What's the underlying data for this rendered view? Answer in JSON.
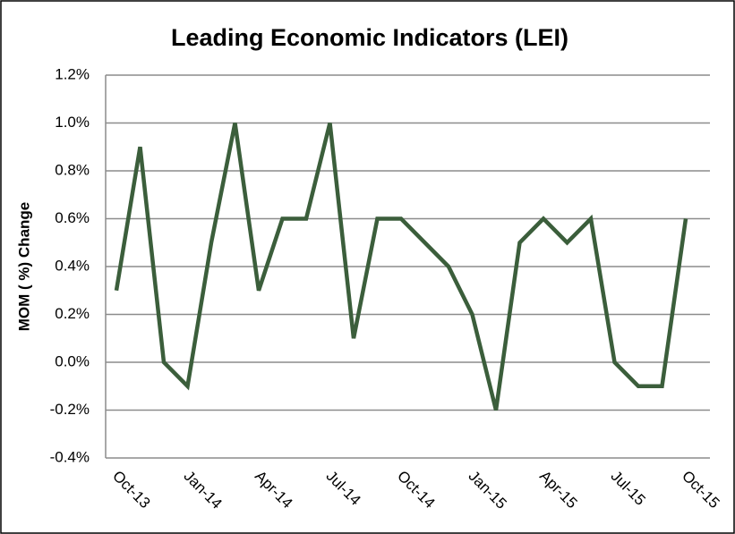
{
  "chart_data": {
    "type": "line",
    "title": "Leading Economic Indicators (LEI)",
    "y_label": "MOM ( %) Change",
    "categories": [
      "Oct-13",
      null,
      null,
      "Jan-14",
      null,
      null,
      "Apr-14",
      null,
      null,
      "Jul-14",
      null,
      null,
      "Oct-14",
      null,
      null,
      "Jan-15",
      null,
      null,
      "Apr-15",
      null,
      null,
      "Jul-15",
      null,
      null,
      "Oct-15"
    ],
    "series": [
      {
        "name": "LEI",
        "color": "#3b5e3b",
        "values": [
          0.3,
          0.9,
          0.0,
          -0.1,
          0.5,
          1.0,
          0.3,
          0.6,
          0.6,
          1.0,
          0.1,
          0.6,
          0.6,
          0.5,
          0.4,
          0.2,
          -0.2,
          0.5,
          0.6,
          0.5,
          0.6,
          0.0,
          -0.1,
          -0.1,
          0.6
        ]
      }
    ],
    "ylim": [
      -0.4,
      1.2
    ],
    "yticks": [
      {
        "value": -0.4,
        "label": "-0.4%"
      },
      {
        "value": -0.2,
        "label": "-0.2%"
      },
      {
        "value": 0,
        "label": "0.0%"
      },
      {
        "value": 0.2,
        "label": "0.2%"
      },
      {
        "value": 0.4,
        "label": "0.4%"
      },
      {
        "value": 0.6,
        "label": "0.6%"
      },
      {
        "value": 0.8,
        "label": "0.8%"
      },
      {
        "value": 1.0,
        "label": "1.0%"
      },
      {
        "value": 1.2,
        "label": "1.2%"
      }
    ],
    "grid": true
  }
}
